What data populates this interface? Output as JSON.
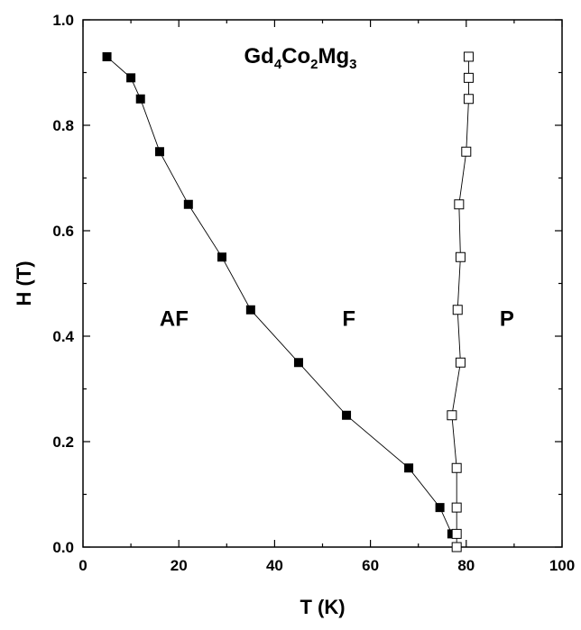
{
  "chart_data": {
    "type": "scatter",
    "title_parts": [
      {
        "text": "Gd",
        "sub": false
      },
      {
        "text": "4",
        "sub": true
      },
      {
        "text": "Co",
        "sub": false
      },
      {
        "text": "2",
        "sub": true
      },
      {
        "text": "Mg",
        "sub": false
      },
      {
        "text": "3",
        "sub": true
      }
    ],
    "xlabel": "T (K)",
    "ylabel": "H (T)",
    "xlim": [
      0,
      100
    ],
    "ylim": [
      0,
      1.0
    ],
    "xticks": [
      0,
      20,
      40,
      60,
      80,
      100
    ],
    "xtick_labels": [
      "0",
      "20",
      "40",
      "60",
      "80",
      "100"
    ],
    "yticks": [
      0.0,
      0.2,
      0.4,
      0.6,
      0.8,
      1.0
    ],
    "ytick_labels": [
      "0.0",
      "0.2",
      "0.4",
      "0.6",
      "0.8",
      "1.0"
    ],
    "grid": false,
    "series": [
      {
        "marker": "filled-square",
        "color": "#000000",
        "points": [
          {
            "x": 5,
            "y": 0.93
          },
          {
            "x": 10,
            "y": 0.89
          },
          {
            "x": 12,
            "y": 0.85
          },
          {
            "x": 16,
            "y": 0.75
          },
          {
            "x": 22,
            "y": 0.65
          },
          {
            "x": 29,
            "y": 0.55
          },
          {
            "x": 35,
            "y": 0.45
          },
          {
            "x": 45,
            "y": 0.35
          },
          {
            "x": 55,
            "y": 0.25
          },
          {
            "x": 68,
            "y": 0.15
          },
          {
            "x": 74.5,
            "y": 0.075
          },
          {
            "x": 77,
            "y": 0.025
          }
        ]
      },
      {
        "marker": "open-square",
        "color": "#000000",
        "points": [
          {
            "x": 80.5,
            "y": 0.93
          },
          {
            "x": 80.5,
            "y": 0.89
          },
          {
            "x": 80.5,
            "y": 0.85
          },
          {
            "x": 80,
            "y": 0.75
          },
          {
            "x": 78.5,
            "y": 0.65
          },
          {
            "x": 78.8,
            "y": 0.55
          },
          {
            "x": 78.2,
            "y": 0.45
          },
          {
            "x": 78.8,
            "y": 0.35
          },
          {
            "x": 77,
            "y": 0.25
          },
          {
            "x": 78,
            "y": 0.15
          },
          {
            "x": 78,
            "y": 0.075
          },
          {
            "x": 78,
            "y": 0.025
          },
          {
            "x": 78,
            "y": 0.0
          }
        ]
      }
    ],
    "annotations": [
      {
        "text": "AF",
        "x": 19,
        "y": 0.42
      },
      {
        "text": "F",
        "x": 55.5,
        "y": 0.42
      },
      {
        "text": "P",
        "x": 88.5,
        "y": 0.42
      }
    ]
  }
}
